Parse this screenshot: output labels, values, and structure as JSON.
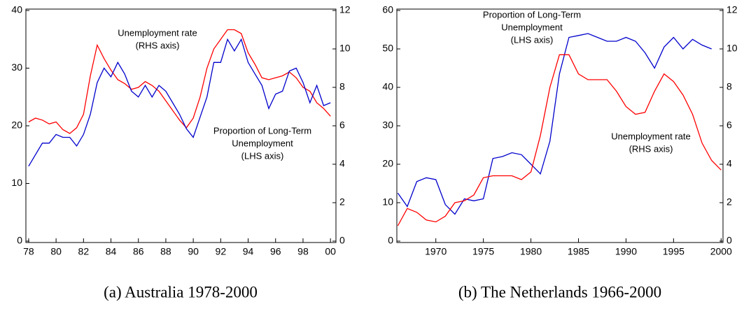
{
  "chart_data": [
    {
      "type": "line",
      "caption": "(a) Australia 1978-2000",
      "annotations": [
        [
          "Unemployment rate",
          "(RHS axis)"
        ],
        [
          "Proportion of Long-Term",
          "Unemployment",
          "(LHS axis)"
        ]
      ],
      "x": [
        1978,
        1978.5,
        1979,
        1979.5,
        1980,
        1980.5,
        1981,
        1981.5,
        1982,
        1982.5,
        1983,
        1983.5,
        1984,
        1984.5,
        1985,
        1985.5,
        1986,
        1986.5,
        1987,
        1987.5,
        1988,
        1988.5,
        1989,
        1989.5,
        1990,
        1990.5,
        1991,
        1991.5,
        1992,
        1992.5,
        1993,
        1993.5,
        1994,
        1994.5,
        1995,
        1995.5,
        1996,
        1996.5,
        1997,
        1997.5,
        1998,
        1998.5,
        1999,
        1999.5,
        2000
      ],
      "series": [
        {
          "color": "#ff0000",
          "axis": "y2",
          "values": [
            6.2,
            6.4,
            6.3,
            6.1,
            6.2,
            5.8,
            5.6,
            5.9,
            6.6,
            8.6,
            10.2,
            9.5,
            8.9,
            8.4,
            8.2,
            7.9,
            8.0,
            8.3,
            8.1,
            7.8,
            7.3,
            6.8,
            6.3,
            5.9,
            6.4,
            7.5,
            9.0,
            10.0,
            10.5,
            11.0,
            11.0,
            10.8,
            9.8,
            9.2,
            8.5,
            8.4,
            8.5,
            8.6,
            8.8,
            8.5,
            8.0,
            7.8,
            7.2,
            6.9,
            6.5
          ]
        },
        {
          "color": "#0000cc",
          "values": [
            13,
            15,
            17,
            17,
            18.5,
            18,
            18,
            16.5,
            18.5,
            22,
            27.5,
            30,
            28.5,
            31,
            29,
            26,
            25,
            27,
            25,
            27,
            26,
            24,
            22,
            19.5,
            18,
            21.5,
            25,
            31,
            31,
            35,
            33,
            35,
            31,
            29,
            27,
            23,
            25.5,
            26,
            29.5,
            30,
            27.5,
            24,
            27,
            23.5,
            24
          ]
        }
      ],
      "xlim": [
        1977.8,
        2000.4
      ],
      "xticks": [
        {
          "value": 1978,
          "label": "78"
        },
        {
          "value": 1980,
          "label": "80"
        },
        {
          "value": 1982,
          "label": "82"
        },
        {
          "value": 1984,
          "label": "84"
        },
        {
          "value": 1986,
          "label": "86"
        },
        {
          "value": 1988,
          "label": "88"
        },
        {
          "value": 1990,
          "label": "90"
        },
        {
          "value": 1992,
          "label": "92"
        },
        {
          "value": 1994,
          "label": "94"
        },
        {
          "value": 1996,
          "label": "96"
        },
        {
          "value": 1998,
          "label": "98"
        },
        {
          "value": 2000,
          "label": "00"
        }
      ],
      "ylim": [
        0,
        40
      ],
      "yticks": [
        0,
        10,
        20,
        30,
        40
      ],
      "y2lim": [
        0,
        12
      ],
      "y2ticks": [
        0,
        2,
        4,
        6,
        8,
        10,
        12
      ]
    },
    {
      "type": "line",
      "caption": "(b) The Netherlands 1966-2000",
      "annotations": [
        [
          "Proportion of Long-Term",
          "Unemployment",
          "(LHS axis)"
        ],
        [
          "Unemployment rate",
          "(RHS axis)"
        ]
      ],
      "x": [
        1966,
        1967,
        1968,
        1969,
        1970,
        1971,
        1972,
        1973,
        1974,
        1975,
        1976,
        1977,
        1978,
        1979,
        1980,
        1981,
        1982,
        1983,
        1984,
        1985,
        1986,
        1987,
        1988,
        1989,
        1990,
        1991,
        1992,
        1993,
        1994,
        1995,
        1996,
        1997,
        1998,
        1999,
        2000
      ],
      "series": [
        {
          "color": "#0000cc",
          "values": [
            12.5,
            9,
            15.5,
            16.5,
            16,
            9.5,
            7,
            11,
            10.5,
            11,
            21.5,
            22,
            23,
            22.5,
            20,
            17.5,
            26,
            43.5,
            53,
            53.5,
            54,
            53,
            52,
            52,
            53,
            52,
            49,
            45,
            50.5,
            53,
            50,
            52.5,
            51,
            50,
            null
          ]
        },
        {
          "color": "#ff0000",
          "axis": "y2",
          "values": [
            0.8,
            1.7,
            1.5,
            1.1,
            1.0,
            1.3,
            2.0,
            2.1,
            2.4,
            3.3,
            3.4,
            3.4,
            3.4,
            3.2,
            3.6,
            5.5,
            8.0,
            9.7,
            9.7,
            8.7,
            8.4,
            8.4,
            8.4,
            7.8,
            7.0,
            6.6,
            6.7,
            7.8,
            8.7,
            8.3,
            7.6,
            6.6,
            5.1,
            4.2,
            3.7
          ]
        }
      ],
      "xlim": [
        1965.9,
        2000.2
      ],
      "xticks": [
        1970,
        1975,
        1980,
        1985,
        1990,
        1995,
        2000
      ],
      "ylim": [
        0,
        60
      ],
      "yticks": [
        0,
        10,
        20,
        30,
        40,
        50,
        60
      ],
      "y2lim": [
        0,
        12
      ],
      "y2ticks": [
        0,
        2,
        4,
        6,
        8,
        10,
        12
      ]
    }
  ]
}
